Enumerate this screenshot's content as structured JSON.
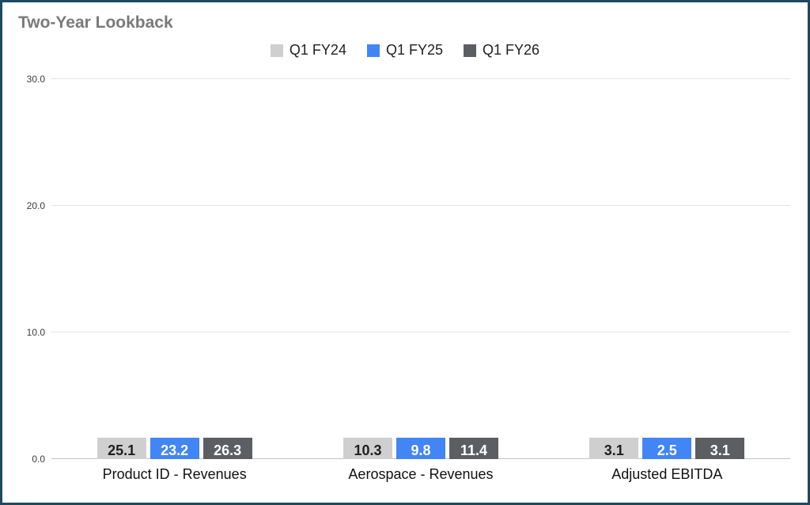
{
  "title": "Two-Year Lookback",
  "colors": {
    "frame_border": "#1c4a61",
    "title_text": "#7a7a7a",
    "gridline": "#e2e2e2",
    "baseline": "#c2c2c2"
  },
  "chart_data": {
    "type": "bar",
    "title": "Two-Year Lookback",
    "categories": [
      "Product ID - Revenues",
      "Aerospace - Revenues",
      "Adjusted EBITDA"
    ],
    "series": [
      {
        "name": "Q1 FY24",
        "color": "#cfcfcf",
        "label_color": "#1f1f1f",
        "values": [
          25.1,
          10.3,
          3.1
        ]
      },
      {
        "name": "Q1 FY25",
        "color": "#4285f4",
        "label_color": "#ffffff",
        "values": [
          23.2,
          9.8,
          2.5
        ]
      },
      {
        "name": "Q1 FY26",
        "color": "#5c5e62",
        "label_color": "#ffffff",
        "values": [
          26.3,
          11.4,
          3.1
        ]
      }
    ],
    "xlabel": "",
    "ylabel": "",
    "ylim": [
      0,
      30
    ],
    "yticks": [
      0,
      10,
      20,
      30
    ],
    "grid": true,
    "legend_position": "top"
  }
}
